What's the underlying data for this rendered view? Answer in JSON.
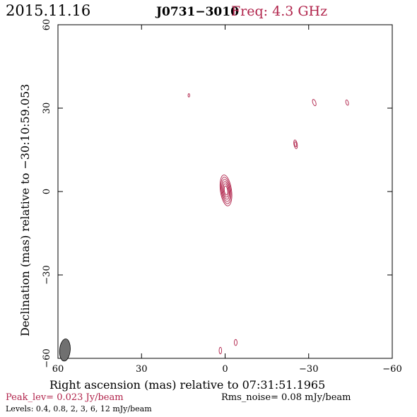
{
  "header": {
    "date": "2015.11.16",
    "source": "J0731−3010",
    "freq": "Freq: 4.3 GHz"
  },
  "footer": {
    "peak": "Peak_lev=  0.023 Jy/beam",
    "rms": "Rms_noise= 0.08 mJy/beam",
    "levels": "Levels: 0.4, 0.8,   2,   3,   6,  12 mJy/beam"
  },
  "colors": {
    "contour": "#b0224a",
    "axis": "#000000",
    "beam": "#707070",
    "accent": "#b0224a"
  },
  "chart_data": {
    "type": "contour",
    "xlabel": "Right ascension (mas) relative to 07:31:51.1965",
    "ylabel": "Declination (mas) relative to −30:10:59.053",
    "xlim": [
      60,
      -60
    ],
    "ylim": [
      -60,
      60
    ],
    "x_ticks": [
      60,
      30,
      0,
      -30,
      -60
    ],
    "x_tick_labels": [
      "60",
      "30",
      "0",
      "−30",
      "−60"
    ],
    "y_ticks": [
      -60,
      -30,
      0,
      30,
      60
    ],
    "y_tick_labels": [
      "−60",
      "−30",
      "0",
      "30",
      "60"
    ],
    "contour_levels_mJy": [
      0.4,
      0.8,
      2,
      3,
      6,
      12
    ],
    "peak_Jy_per_beam": 0.023,
    "rms_noise_mJy_per_beam": 0.08,
    "beam": {
      "x": 57.5,
      "y": -57.0,
      "major": 4.0,
      "minor": 1.9,
      "pa_deg": 5
    },
    "components": [
      {
        "name": "core",
        "x": -0.3,
        "y": 0.4,
        "major": 5.6,
        "minor": 2.0,
        "pa_deg": -8,
        "rings": 6
      },
      {
        "name": "c1",
        "x": 13.0,
        "y": 34.6,
        "major": 0.6,
        "minor": 0.3,
        "pa_deg": 0,
        "rings": 1
      },
      {
        "name": "c2",
        "x": -32.0,
        "y": 32.0,
        "major": 1.2,
        "minor": 0.55,
        "pa_deg": -20,
        "rings": 1
      },
      {
        "name": "c3",
        "x": -43.8,
        "y": 32.0,
        "major": 1.0,
        "minor": 0.45,
        "pa_deg": -15,
        "rings": 1
      },
      {
        "name": "c4",
        "x": -25.3,
        "y": 17.0,
        "major": 1.6,
        "minor": 0.6,
        "pa_deg": -10,
        "rings": 2
      },
      {
        "name": "c5",
        "x": -3.8,
        "y": -54.3,
        "major": 1.1,
        "minor": 0.5,
        "pa_deg": 0,
        "rings": 1
      },
      {
        "name": "c6",
        "x": 1.7,
        "y": -57.2,
        "major": 1.2,
        "minor": 0.45,
        "pa_deg": 0,
        "rings": 1
      }
    ]
  }
}
